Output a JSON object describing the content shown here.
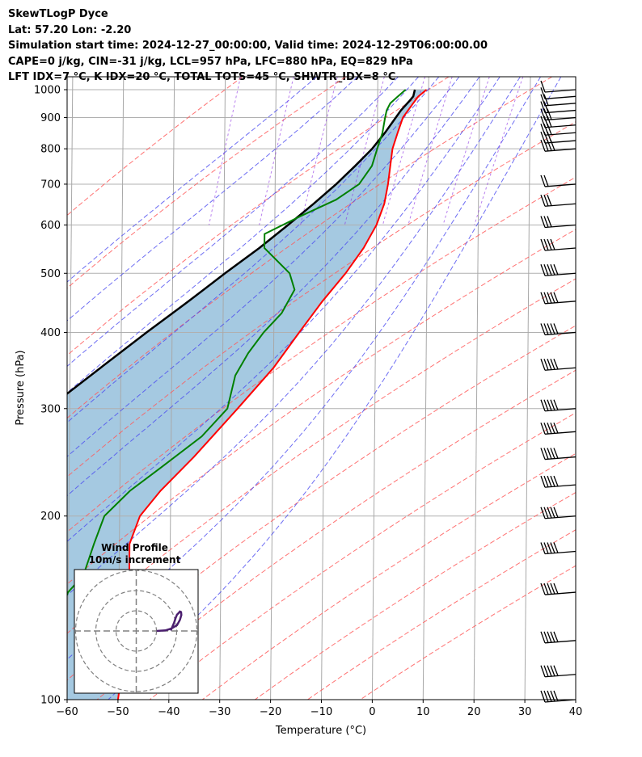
{
  "header": {
    "line1": "SkewTLogP Dyce",
    "line2": "Lat: 57.20   Lon: -2.20",
    "line3": "Simulation start time: 2024-12-27_00:00:00, Valid time: 2024-12-29T06:00:00.00",
    "line4": "CAPE=0 j/kg, CIN=-31 j/kg, LCL=957 hPa, LFC=880 hPa, EQ=829 hPa",
    "line5": "LFT IDX=7 °C, K IDX=20 °C, TOTAL TOTS=45 °C, SHWTR_IDX=8 °C"
  },
  "chart_data": {
    "type": "line",
    "subtype": "skew-T log-P",
    "xlabel": "Temperature (°C)",
    "ylabel": "Pressure (hPa)",
    "xlim": [
      -60,
      40
    ],
    "ylim": [
      1050,
      100
    ],
    "yscale": "log",
    "xticks": [
      -60,
      -50,
      -40,
      -30,
      -20,
      -10,
      0,
      10,
      20,
      30,
      40
    ],
    "yticks": [
      1000,
      900,
      800,
      700,
      600,
      500,
      400,
      300,
      200,
      100
    ],
    "grid": true,
    "temperature": {
      "color": "#ff0000",
      "points": [
        [
          1000,
          9.6
        ],
        [
          975,
          8.0
        ],
        [
          950,
          7.0
        ],
        [
          925,
          6.0
        ],
        [
          900,
          5.0
        ],
        [
          850,
          4.0
        ],
        [
          800,
          3.0
        ],
        [
          750,
          2.6
        ],
        [
          700,
          2.2
        ],
        [
          650,
          1.5
        ],
        [
          600,
          0.0
        ],
        [
          550,
          -2.5
        ],
        [
          500,
          -6.0
        ],
        [
          450,
          -10.5
        ],
        [
          400,
          -15.0
        ],
        [
          350,
          -20.0
        ],
        [
          300,
          -27.0
        ],
        [
          250,
          -35.5
        ],
        [
          220,
          -42.0
        ],
        [
          200,
          -46.0
        ],
        [
          180,
          -48.0
        ],
        [
          150,
          -48.0
        ],
        [
          130,
          -48.5
        ],
        [
          115,
          -49.0
        ],
        [
          100,
          -50.0
        ]
      ]
    },
    "dewpoint": {
      "color": "#008000",
      "points": [
        [
          1000,
          5.5
        ],
        [
          975,
          4.0
        ],
        [
          950,
          2.5
        ],
        [
          925,
          1.8
        ],
        [
          900,
          1.5
        ],
        [
          850,
          1.0
        ],
        [
          800,
          0.0
        ],
        [
          750,
          -1.0
        ],
        [
          700,
          -3.5
        ],
        [
          660,
          -8.0
        ],
        [
          620,
          -15.0
        ],
        [
          580,
          -22.0
        ],
        [
          550,
          -22.0
        ],
        [
          500,
          -17.0
        ],
        [
          470,
          -16.0
        ],
        [
          430,
          -18.5
        ],
        [
          400,
          -22.0
        ],
        [
          370,
          -25.0
        ],
        [
          340,
          -27.5
        ],
        [
          300,
          -29.0
        ],
        [
          270,
          -34.0
        ],
        [
          240,
          -42.0
        ],
        [
          220,
          -48.0
        ],
        [
          200,
          -53.0
        ],
        [
          180,
          -55.0
        ],
        [
          160,
          -57.0
        ],
        [
          150,
          -60.0
        ],
        [
          130,
          -63.0
        ],
        [
          120,
          -67.0
        ],
        [
          110,
          -68.0
        ],
        [
          100,
          -69.0
        ]
      ]
    },
    "parcel": {
      "color": "#000000",
      "points": [
        [
          1000,
          7.3
        ],
        [
          975,
          7.0
        ],
        [
          957,
          6.2
        ],
        [
          925,
          4.6
        ],
        [
          900,
          3.6
        ],
        [
          850,
          1.5
        ],
        [
          800,
          -1.0
        ],
        [
          750,
          -4.3
        ],
        [
          700,
          -8.0
        ],
        [
          650,
          -12.4
        ],
        [
          600,
          -17.4
        ],
        [
          550,
          -23.0
        ],
        [
          500,
          -29.7
        ],
        [
          450,
          -36.8
        ],
        [
          400,
          -45.0
        ],
        [
          350,
          -54.0
        ],
        [
          300,
          -64.3
        ],
        [
          250,
          -76.0
        ],
        [
          200,
          -89.4
        ],
        [
          150,
          -105.0
        ],
        [
          100,
          -124.0
        ]
      ]
    },
    "wind_barbs": {
      "color": "#000000",
      "levels_hpa": [
        1000,
        975,
        950,
        925,
        900,
        875,
        850,
        825,
        800,
        700,
        650,
        600,
        550,
        500,
        450,
        400,
        350,
        300,
        275,
        250,
        225,
        200,
        175,
        150,
        125,
        110,
        100
      ],
      "speed_kt": [
        10,
        12,
        15,
        20,
        25,
        25,
        30,
        30,
        35,
        50,
        55,
        60,
        70,
        80,
        85,
        90,
        95,
        100,
        100,
        105,
        105,
        110,
        110,
        115,
        115,
        115,
        115
      ]
    },
    "hodograph": {
      "title": "Wind Profile",
      "subtitle": "10m/s increment",
      "line_color": "#4b1f6f",
      "u": [
        -43,
        -40,
        -38,
        -36,
        -35,
        -34.5,
        -34.6,
        -35.0,
        -35.4,
        -36.0,
        -36.5,
        -37.0,
        -38.0,
        -38.3
      ],
      "v": [
        19,
        18.8,
        18.2,
        17.0,
        15.2,
        13.5,
        12.5,
        12.3,
        12.8,
        13.4,
        14.6,
        16.2,
        18.5,
        18.7
      ]
    }
  }
}
